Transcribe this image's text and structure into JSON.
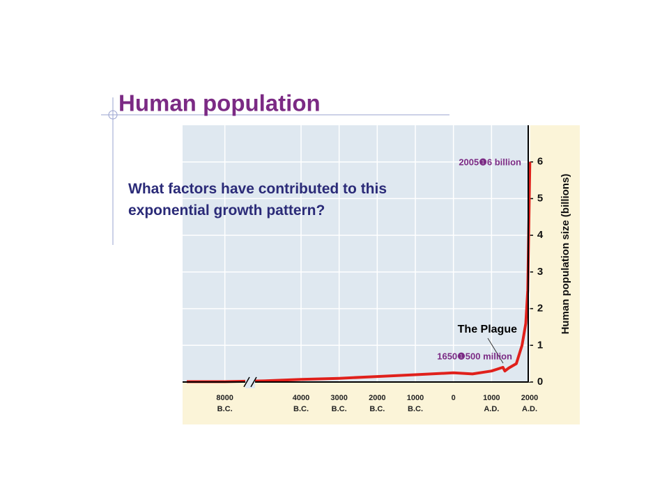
{
  "title": "Human population",
  "question": "What factors have contributed to this exponential growth pattern?",
  "chart_data": {
    "type": "line",
    "y_label": "Human population size (billions)",
    "x": [
      -10000,
      -8000,
      -6000,
      -4000,
      -3000,
      -2000,
      -1000,
      0,
      500,
      1000,
      1300,
      1350,
      1450,
      1650,
      1800,
      1900,
      1950,
      1975,
      2005
    ],
    "series": [
      {
        "color": "#e0201b",
        "values": [
          0.01,
          0.01,
          0.03,
          0.07,
          0.1,
          0.15,
          0.2,
          0.25,
          0.22,
          0.3,
          0.4,
          0.3,
          0.38,
          0.5,
          1.0,
          1.6,
          2.5,
          4,
          6
        ]
      }
    ],
    "xlim": [
      -10000,
      2000
    ],
    "xticks": [
      {
        "value": -8000,
        "label": "8000\nB.C."
      },
      {
        "value": -4000,
        "label": "4000\nB.C."
      },
      {
        "value": -3000,
        "label": "3000\nB.C."
      },
      {
        "value": -2000,
        "label": "2000\nB.C."
      },
      {
        "value": -1000,
        "label": "1000\nB.C."
      },
      0,
      {
        "value": 1000,
        "label": "1000\nA.D."
      },
      {
        "value": 2000,
        "label": "2000\nA.D."
      }
    ],
    "axis_break": true,
    "ylim": [
      0,
      7
    ],
    "yticks": [
      0,
      1,
      2,
      3,
      4,
      5,
      6
    ],
    "grid": true,
    "annotations": [
      "2005❶6 billion",
      "The Plague",
      "1650❶500 million"
    ]
  }
}
